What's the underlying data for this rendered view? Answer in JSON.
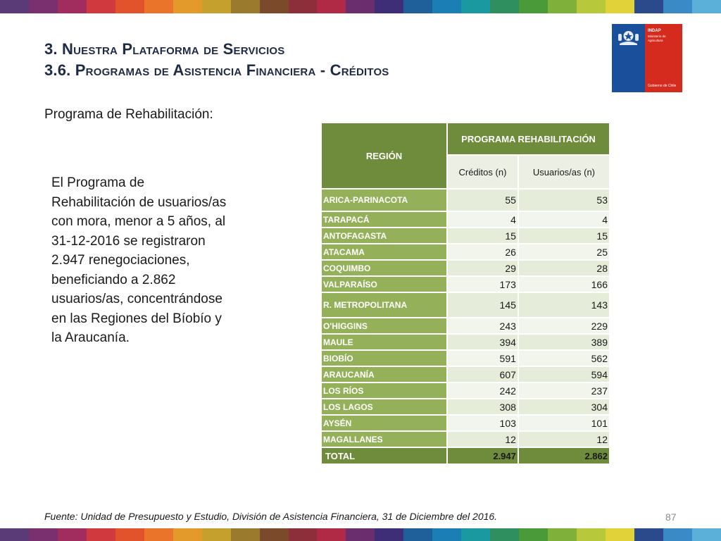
{
  "header": {
    "title_line1": "3. Nuestra Plataforma de Servicios",
    "title_line2": "3.6. Programas de Asistencia Financiera - Créditos"
  },
  "logo": {
    "name": "INDAP",
    "subtitle": "Ministerio de Agricultura",
    "government": "Gobierno de Chile",
    "blue": "#1a4f9c",
    "red": "#d52b1e"
  },
  "subtitle": "Programa de Rehabilitación:",
  "body_text": "El Programa de Rehabilitación de usuarios/as con mora, menor a 5 años, al 31-12-2016 se registraron 2.947 renegociaciones, beneficiando a 2.862 usuarios/as, concentrándose en las Regiones del Bíobío y la Araucanía.",
  "table": {
    "region_header": "REGIÓN",
    "program_header": "PROGRAMA REHABILITACIÓN",
    "col_creditos": "Créditos (n)",
    "col_usuarios": "Usuarios/as (n)",
    "rows": [
      {
        "region": "ARICA-PARINACOTA",
        "creditos": "55",
        "usuarios": "53"
      },
      {
        "region": "TARAPACÁ",
        "creditos": "4",
        "usuarios": "4"
      },
      {
        "region": "ANTOFAGASTA",
        "creditos": "15",
        "usuarios": "15"
      },
      {
        "region": "ATACAMA",
        "creditos": "26",
        "usuarios": "25"
      },
      {
        "region": "COQUIMBO",
        "creditos": "29",
        "usuarios": "28"
      },
      {
        "region": "VALPARAÍSO",
        "creditos": "173",
        "usuarios": "166"
      },
      {
        "region": "R. METROPOLITANA",
        "creditos": "145",
        "usuarios": "143"
      },
      {
        "region": "O'HIGGINS",
        "creditos": "243",
        "usuarios": "229"
      },
      {
        "region": "MAULE",
        "creditos": "394",
        "usuarios": "389"
      },
      {
        "region": "BIOBÍO",
        "creditos": "591",
        "usuarios": "562"
      },
      {
        "region": "ARAUCANÍA",
        "creditos": "607",
        "usuarios": "594"
      },
      {
        "region": "LOS RÍOS",
        "creditos": "242",
        "usuarios": "237"
      },
      {
        "region": "LOS LAGOS",
        "creditos": "308",
        "usuarios": "304"
      },
      {
        "region": "AYSÉN",
        "creditos": "103",
        "usuarios": "101"
      },
      {
        "region": "MAGALLANES",
        "creditos": "12",
        "usuarios": "12"
      }
    ],
    "total": {
      "label": "TOTAL",
      "creditos": "2.947",
      "usuarios": "2.862"
    }
  },
  "source": "Fuente: Unidad de Presupuesto y Estudio, División de Asistencia Financiera, 31 de Diciembre del 2016.",
  "page_number": "87",
  "stripe_colors": [
    "#5b3a78",
    "#7a2f6e",
    "#a12c5e",
    "#d03a3e",
    "#e2532b",
    "#e9742a",
    "#e39a2a",
    "#c6a02c",
    "#9a7b2e",
    "#7a4a2a",
    "#8c2f3a",
    "#b02a45",
    "#6a2d6e",
    "#3e2e78",
    "#1f5f9a",
    "#1b7fb5",
    "#1a9aa0",
    "#2f8f5e",
    "#4a9a3a",
    "#7fb13a",
    "#b7c93a",
    "#e2d23a",
    "#2a4a8c",
    "#3a8ac5",
    "#5ab0d8"
  ]
}
